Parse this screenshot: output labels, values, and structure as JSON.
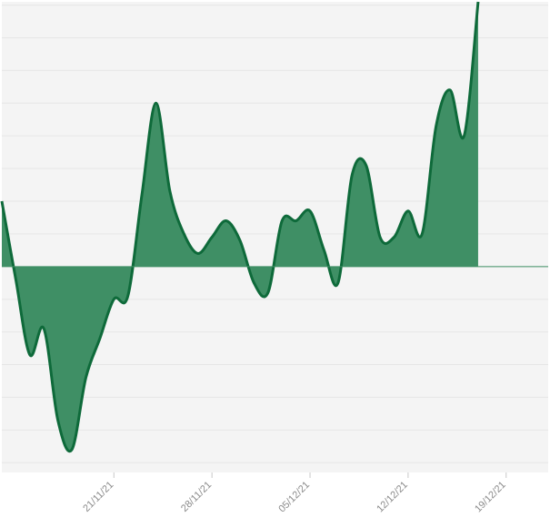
{
  "chart_data": {
    "type": "area",
    "title": "",
    "xlabel": "",
    "ylabel": "",
    "grid": true,
    "baseline": 0,
    "ylim": [
      -6.3,
      8.1
    ],
    "xlim": [
      "2021-11-13",
      "2021-12-22"
    ],
    "x_ticks": [
      "2021-11-21",
      "2021-11-28",
      "2021-12-05",
      "2021-12-12",
      "2021-12-19"
    ],
    "x_tick_labels": [
      "21/11/21",
      "28/11/21",
      "05/12/21",
      "12/12/21",
      "19/12/21"
    ],
    "x": [
      "2021-11-13",
      "2021-11-14",
      "2021-11-15",
      "2021-11-16",
      "2021-11-17",
      "2021-11-18",
      "2021-11-19",
      "2021-11-20",
      "2021-11-21",
      "2021-11-22",
      "2021-11-23",
      "2021-11-24",
      "2021-11-25",
      "2021-11-26",
      "2021-11-27",
      "2021-11-28",
      "2021-11-29",
      "2021-11-30",
      "2021-12-01",
      "2021-12-02",
      "2021-12-03",
      "2021-12-04",
      "2021-12-05",
      "2021-12-06",
      "2021-12-07",
      "2021-12-08",
      "2021-12-09",
      "2021-12-10",
      "2021-12-11",
      "2021-12-12",
      "2021-12-13",
      "2021-12-14",
      "2021-12-15",
      "2021-12-16",
      "2021-12-17",
      "2021-12-18",
      "2021-12-19",
      "2021-12-20",
      "2021-12-21",
      "2021-12-22"
    ],
    "values": [
      2.0,
      -0.4,
      -2.7,
      -1.9,
      -4.7,
      -5.6,
      -3.4,
      -2.2,
      -1.0,
      -0.9,
      2.2,
      5.0,
      2.3,
      1.0,
      0.4,
      0.9,
      1.4,
      0.8,
      -0.5,
      -0.8,
      1.4,
      1.4,
      1.7,
      0.5,
      -0.5,
      2.8,
      3.1,
      0.9,
      0.9,
      1.7,
      1.0,
      4.3,
      5.4,
      4.0,
      8.1,
      null,
      null,
      null,
      null,
      null
    ],
    "series": [
      {
        "color": "#3f8f65",
        "line_color": "#0e6a3a"
      }
    ],
    "colors": {
      "area": "#3f8f65",
      "line": "#0e6a3a",
      "plot_background": "#f4f4f4",
      "grid": "#e6e6e6",
      "tick_text": "#8a8a8a"
    }
  }
}
